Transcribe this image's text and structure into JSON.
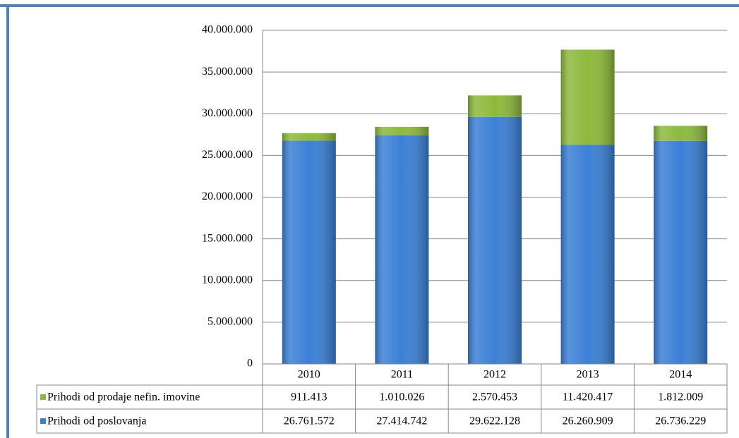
{
  "chart_data": {
    "type": "stacked_bar",
    "categories": [
      "2010",
      "2011",
      "2012",
      "2013",
      "2014"
    ],
    "series": [
      {
        "name": "Prihodi od prodaje nefin. imovine",
        "color": "#8dba3c",
        "values": [
          911413,
          1010026,
          2570453,
          11420417,
          1812009
        ],
        "value_labels": [
          "911.413",
          "1.010.026",
          "2.570.453",
          "11.420.417",
          "1.812.009"
        ]
      },
      {
        "name": "Prihodi od poslovanja",
        "color": "#3b80d6",
        "values": [
          26761572,
          27414742,
          29622128,
          26260909,
          26736229
        ],
        "value_labels": [
          "26.761.572",
          "27.414.742",
          "29.622.128",
          "26.260.909",
          "26.736.229"
        ]
      }
    ],
    "ylim": [
      0,
      40000000
    ],
    "yticks": [
      0,
      {
        "value": 5000000,
        "label": "5.000.000"
      },
      {
        "value": 10000000,
        "label": "10.000.000"
      },
      {
        "value": 15000000,
        "label": "15.000.000"
      },
      {
        "value": 20000000,
        "label": "20.000.000"
      },
      {
        "value": 25000000,
        "label": "25.000.000"
      },
      {
        "value": 30000000,
        "label": "30.000.000"
      },
      {
        "value": 35000000,
        "label": "35.000.000"
      },
      {
        "value": 40000000,
        "label": "40.000.000"
      }
    ],
    "grid": true
  }
}
